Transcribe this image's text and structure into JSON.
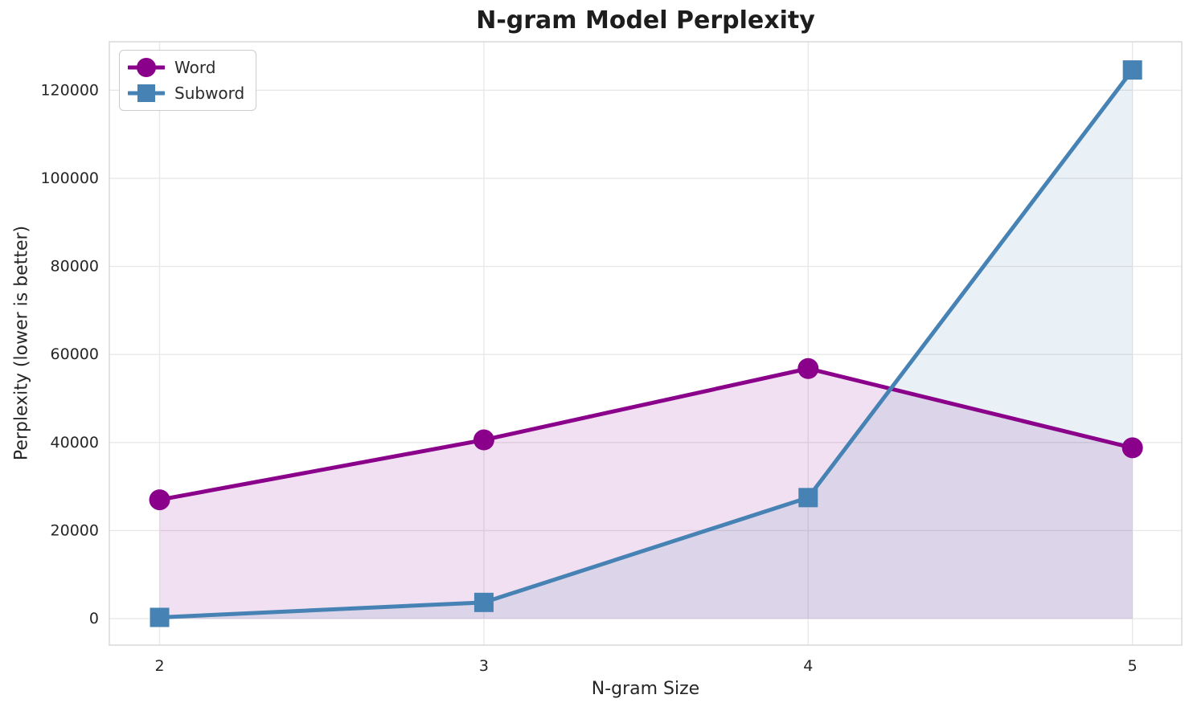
{
  "chart_data": {
    "type": "line",
    "title": "N-gram Model Perplexity",
    "xlabel": "N-gram Size",
    "ylabel": "Perplexity (lower is better)",
    "x": [
      2,
      3,
      4,
      5
    ],
    "series": [
      {
        "name": "Word",
        "color": "#8B008B",
        "marker": "circle",
        "values": [
          27000,
          40600,
          56800,
          38800
        ]
      },
      {
        "name": "Subword",
        "color": "#4682B4",
        "marker": "square",
        "values": [
          300,
          3700,
          27500,
          124600
        ]
      }
    ],
    "xticks": [
      2,
      3,
      4,
      5
    ],
    "yticks": [
      0,
      20000,
      40000,
      60000,
      80000,
      100000,
      120000
    ],
    "xlim": [
      1.845,
      5.152
    ],
    "ylim": [
      -6000,
      131000
    ],
    "fill_to_zero": true,
    "fill_opacity": 0.12,
    "grid": true,
    "legend_position": "upper-left"
  },
  "colors": {
    "background": "#FFFFFF",
    "grid": "#E8E8E8",
    "spine": "#D8D8D8",
    "text": "#262626"
  }
}
